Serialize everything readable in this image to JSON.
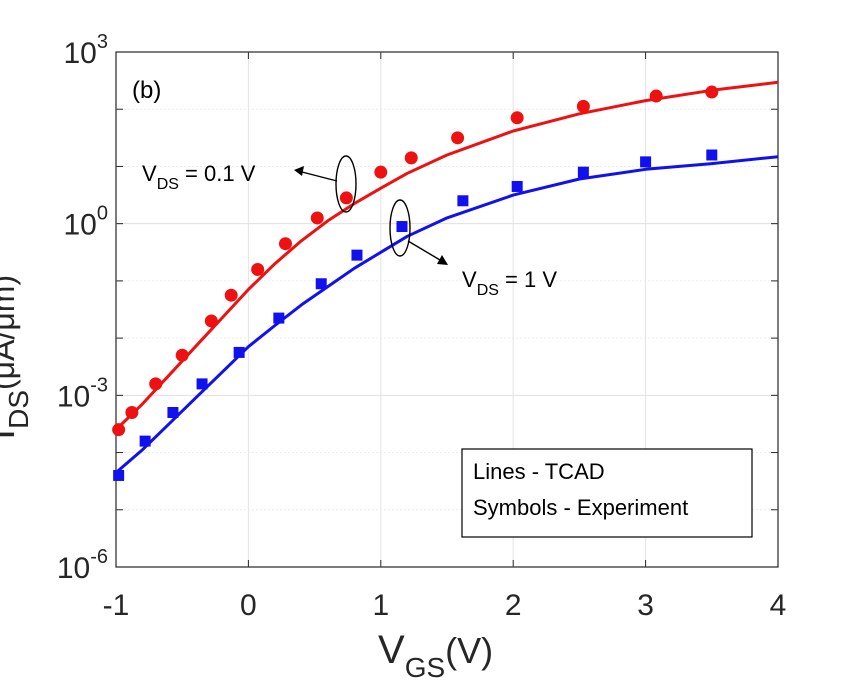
{
  "chart_data": {
    "type": "scatter",
    "panel_label": "(b)",
    "xlabel_main": "V",
    "xlabel_sub": "GS",
    "xlabel_unit": "(V)",
    "ylabel_main": "I",
    "ylabel_sub": "DS",
    "ylabel_unit": "(μA/μm)",
    "xlim": [
      -1,
      4
    ],
    "ylim_log10": [
      -6,
      3
    ],
    "yscale": "log",
    "grid": true,
    "x_ticks": [
      -1,
      0,
      1,
      2,
      3,
      4
    ],
    "x_tick_labels": [
      "-1",
      "0",
      "1",
      "2",
      "3",
      "4"
    ],
    "y_ticks_log10": [
      -6,
      -3,
      0,
      3
    ],
    "y_tick_labels": [
      {
        "base": "10",
        "exp": "-6"
      },
      {
        "base": "10",
        "exp": "-3"
      },
      {
        "base": "10",
        "exp": "0"
      },
      {
        "base": "10",
        "exp": "3"
      }
    ],
    "legend": {
      "position": "bottom-right",
      "lines": [
        "Lines - TCAD",
        "Symbols - Experiment"
      ]
    },
    "series": [
      {
        "name": "VDS = 0.1 V",
        "color": "#ee1111",
        "marker": "circle",
        "label_main": "V",
        "label_sub": "DS",
        "label_rest": " = 0.1 V",
        "tcad": {
          "x": [
            -1,
            -0.8,
            -0.6,
            -0.4,
            -0.2,
            0,
            0.2,
            0.4,
            0.6,
            0.8,
            1.0,
            1.2,
            1.5,
            2.0,
            2.5,
            3.0,
            3.5,
            4.0
          ],
          "log10_y": [
            -3.6,
            -3.15,
            -2.65,
            -2.15,
            -1.65,
            -1.15,
            -0.7,
            -0.3,
            0.05,
            0.35,
            0.62,
            0.88,
            1.2,
            1.62,
            1.92,
            2.15,
            2.33,
            2.47
          ]
        },
        "experiment": {
          "x": [
            -0.98,
            -0.88,
            -0.7,
            -0.5,
            -0.28,
            -0.13,
            0.07,
            0.28,
            0.52,
            0.74,
            1.0,
            1.23,
            1.58,
            2.03,
            2.53,
            3.08,
            3.5
          ],
          "log10_y": [
            -3.6,
            -3.3,
            -2.8,
            -2.3,
            -1.7,
            -1.25,
            -0.8,
            -0.35,
            0.1,
            0.45,
            0.9,
            1.15,
            1.5,
            1.85,
            2.05,
            2.23,
            2.3
          ]
        }
      },
      {
        "name": "VDS = 1 V",
        "color": "#1111ee",
        "marker": "square",
        "label_main": "V",
        "label_sub": "DS",
        "label_rest": " = 1 V",
        "tcad": {
          "x": [
            -1,
            -0.8,
            -0.6,
            -0.4,
            -0.2,
            0,
            0.2,
            0.4,
            0.6,
            0.8,
            1.0,
            1.2,
            1.5,
            2.0,
            2.5,
            3.0,
            3.5,
            4.0
          ],
          "log10_y": [
            -4.35,
            -3.95,
            -3.5,
            -3.05,
            -2.6,
            -2.15,
            -1.78,
            -1.42,
            -1.1,
            -0.78,
            -0.5,
            -0.22,
            0.1,
            0.5,
            0.78,
            0.95,
            1.05,
            1.17
          ]
        },
        "experiment": {
          "x": [
            -0.98,
            -0.78,
            -0.57,
            -0.35,
            -0.07,
            0.23,
            0.55,
            0.82,
            1.16,
            1.62,
            2.03,
            2.53,
            3.0,
            3.5
          ],
          "log10_y": [
            -4.4,
            -3.8,
            -3.3,
            -2.8,
            -2.25,
            -1.65,
            -1.05,
            -0.55,
            -0.05,
            0.4,
            0.65,
            0.9,
            1.08,
            1.2
          ]
        }
      }
    ]
  }
}
